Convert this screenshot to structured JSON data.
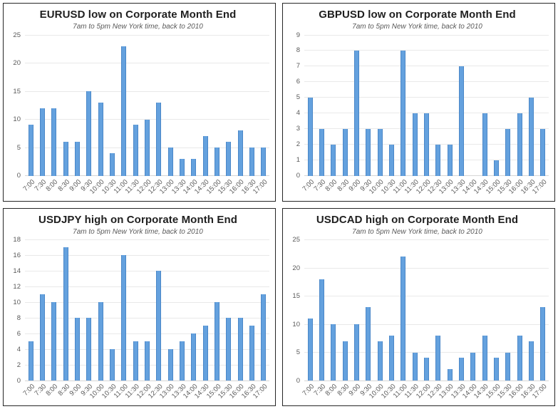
{
  "colors": {
    "bar_fill": "#64a1de",
    "bar_border": "#4a87c8",
    "gridline": "#e9e9e9",
    "axis_text": "#595959",
    "title_text": "#1f1f1f",
    "panel_border": "#262626"
  },
  "chart_data": [
    {
      "type": "bar",
      "title": "EURUSD low on Corporate Month End",
      "subtitle": "7am to 5pm New York time, back to 2010",
      "categories": [
        "7:00",
        "7:30",
        "8:00",
        "8:30",
        "9:00",
        "9:30",
        "10:00",
        "10:30",
        "11:00",
        "11:30",
        "12:00",
        "12:30",
        "13:00",
        "13:30",
        "14:00",
        "14:30",
        "15:00",
        "15:30",
        "16:00",
        "16:30",
        "17:00"
      ],
      "values": [
        9,
        12,
        12,
        6,
        6,
        15,
        13,
        4,
        23,
        9,
        10,
        13,
        5,
        3,
        3,
        7,
        5,
        6,
        8,
        5,
        5
      ],
      "xlabel": "",
      "ylabel": "",
      "ylim": [
        0,
        25
      ],
      "ytick_step": 5,
      "grid": true,
      "legend": "none"
    },
    {
      "type": "bar",
      "title": "GBPUSD low on Corporate Month End",
      "subtitle": "7am to 5pm New York time, back to 2010",
      "categories": [
        "7:00",
        "7:30",
        "8:00",
        "8:30",
        "9:00",
        "9:30",
        "10:00",
        "10:30",
        "11:00",
        "11:30",
        "12:00",
        "12:30",
        "13:00",
        "13:30",
        "14:00",
        "14:30",
        "15:00",
        "15:30",
        "16:00",
        "16:30",
        "17:00"
      ],
      "values": [
        5,
        3,
        2,
        3,
        8,
        3,
        3,
        2,
        8,
        4,
        4,
        2,
        2,
        7,
        0,
        4,
        1,
        3,
        4,
        5,
        3
      ],
      "xlabel": "",
      "ylabel": "",
      "ylim": [
        0,
        9
      ],
      "ytick_step": 1,
      "grid": true,
      "legend": "none"
    },
    {
      "type": "bar",
      "title": "USDJPY high on Corporate Month End",
      "subtitle": "7am to 5pm New York time, back to 2010",
      "categories": [
        "7:00",
        "7:30",
        "8:00",
        "8:30",
        "9:00",
        "9:30",
        "10:00",
        "10:30",
        "11:00",
        "11:30",
        "12:00",
        "12:30",
        "13:00",
        "13:30",
        "14:00",
        "14:30",
        "15:00",
        "15:30",
        "16:00",
        "16:30",
        "17:00"
      ],
      "values": [
        5,
        11,
        10,
        17,
        8,
        8,
        10,
        4,
        16,
        5,
        5,
        14,
        4,
        5,
        6,
        7,
        10,
        8,
        8,
        7,
        11
      ],
      "xlabel": "",
      "ylabel": "",
      "ylim": [
        0,
        18
      ],
      "ytick_step": 2,
      "grid": true,
      "legend": "none"
    },
    {
      "type": "bar",
      "title": "USDCAD high on Corporate Month End",
      "subtitle": "7am to 5pm New York time, back to 2010",
      "categories": [
        "7:00",
        "7:30",
        "8:00",
        "8:30",
        "9:00",
        "9:30",
        "10:00",
        "10:30",
        "11:00",
        "11:30",
        "12:00",
        "12:30",
        "13:00",
        "13:30",
        "14:00",
        "14:30",
        "15:00",
        "15:30",
        "16:00",
        "16:30",
        "17:00"
      ],
      "values": [
        11,
        18,
        10,
        7,
        10,
        13,
        7,
        8,
        22,
        5,
        4,
        8,
        2,
        4,
        5,
        8,
        4,
        5,
        8,
        7,
        13
      ],
      "xlabel": "",
      "ylabel": "",
      "ylim": [
        0,
        25
      ],
      "ytick_step": 5,
      "grid": true,
      "legend": "none"
    }
  ]
}
